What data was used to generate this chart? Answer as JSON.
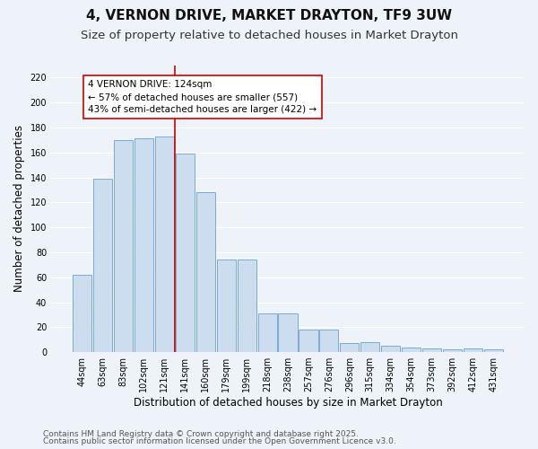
{
  "title": "4, VERNON DRIVE, MARKET DRAYTON, TF9 3UW",
  "subtitle": "Size of property relative to detached houses in Market Drayton",
  "xlabel": "Distribution of detached houses by size in Market Drayton",
  "ylabel": "Number of detached properties",
  "footnote1": "Contains HM Land Registry data © Crown copyright and database right 2025.",
  "footnote2": "Contains public sector information licensed under the Open Government Licence v3.0.",
  "categories": [
    "44sqm",
    "63sqm",
    "83sqm",
    "102sqm",
    "121sqm",
    "141sqm",
    "160sqm",
    "179sqm",
    "199sqm",
    "218sqm",
    "238sqm",
    "257sqm",
    "276sqm",
    "296sqm",
    "315sqm",
    "334sqm",
    "354sqm",
    "373sqm",
    "392sqm",
    "412sqm",
    "431sqm"
  ],
  "values": [
    62,
    139,
    170,
    171,
    173,
    159,
    128,
    74,
    74,
    31,
    31,
    18,
    18,
    7,
    8,
    5,
    4,
    3,
    2,
    3,
    2
  ],
  "bar_color": "#ccddf0",
  "bar_edge_color": "#7aacd4",
  "vline_index": 4,
  "annotation_text": "4 VERNON DRIVE: 124sqm\n← 57% of detached houses are smaller (557)\n43% of semi-detached houses are larger (422) →",
  "annotation_box_color": "#ffffff",
  "annotation_box_edge": "#cc0000",
  "annotation_text_color": "#000000",
  "vline_color": "#cc0000",
  "ylim": [
    0,
    230
  ],
  "yticks": [
    0,
    20,
    40,
    60,
    80,
    100,
    120,
    140,
    160,
    180,
    200,
    220
  ],
  "bg_color": "#eef2f9",
  "grid_color": "#ffffff",
  "title_fontsize": 11,
  "subtitle_fontsize": 9.5,
  "axis_label_fontsize": 8.5,
  "tick_fontsize": 7,
  "annotation_fontsize": 7.5,
  "footnote_fontsize": 6.5
}
